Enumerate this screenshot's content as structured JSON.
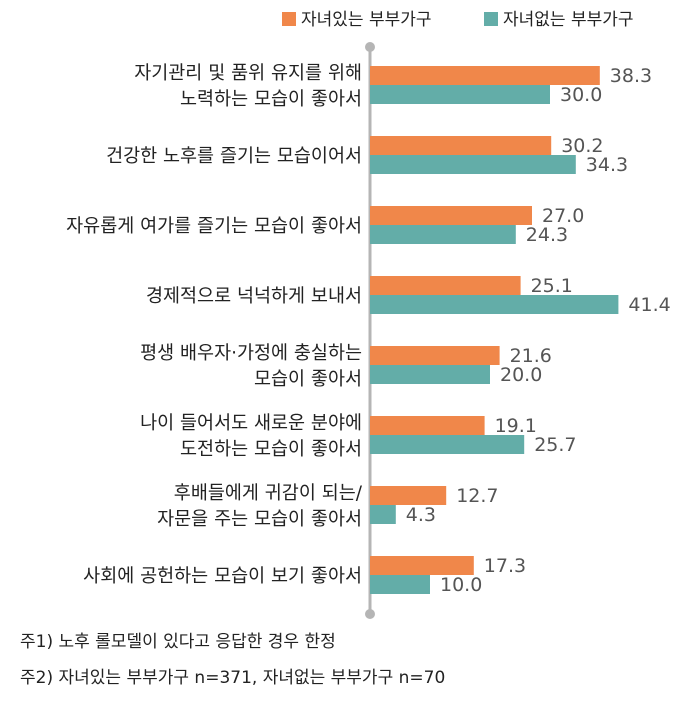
{
  "chart_data": {
    "type": "bar",
    "orientation": "horizontal",
    "categories": [
      [
        "자기관리 및 품위 유지를 위해",
        "노력하는 모습이 좋아서"
      ],
      [
        "건강한 노후를 즐기는 모습이어서"
      ],
      [
        "자유롭게 여가를 즐기는 모습이 좋아서"
      ],
      [
        "경제적으로 넉넉하게 보내서"
      ],
      [
        "평생 배우자·가정에 충실하는",
        "모습이 좋아서"
      ],
      [
        "나이 들어서도 새로운 분야에",
        "도전하는 모습이 좋아서"
      ],
      [
        "후배들에게 귀감이 되는/",
        "자문을 주는 모습이 좋아서"
      ],
      [
        "사회에 공헌하는 모습이 보기 좋아서"
      ]
    ],
    "series": [
      {
        "name": "자녀있는 부부가구",
        "color": "#F0874A",
        "values": [
          38.3,
          30.2,
          27.0,
          25.1,
          21.6,
          19.1,
          12.7,
          17.3
        ],
        "labels": [
          "38.3",
          "30.2",
          "27.0",
          "25.1",
          "21.6",
          "19.1",
          "12.7",
          "17.3"
        ]
      },
      {
        "name": "자녀없는 부부가구",
        "color": "#63ADA8",
        "values": [
          30.0,
          34.3,
          24.3,
          41.4,
          20.0,
          25.7,
          4.3,
          10.0
        ],
        "labels": [
          "30.0",
          "34.3",
          "24.3",
          "41.4",
          "20.0",
          "25.7",
          "4.3",
          "10.0"
        ]
      }
    ],
    "legend_position": "top-right",
    "grid": false
  },
  "notes": [
    "주1) 노후 롤모델이 있다고 응답한 경우 한정",
    "주2) 자녀있는 부부가구 n=371, 자녀없는 부부가구 n=70"
  ]
}
